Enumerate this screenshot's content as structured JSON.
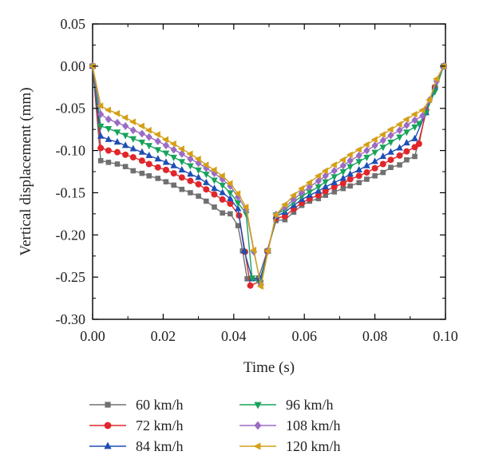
{
  "chart_data": {
    "type": "line",
    "title": "",
    "xlabel": "Time (s)",
    "ylabel": "Vertical displacement (mm)",
    "xlim": [
      0.0,
      0.1
    ],
    "ylim": [
      -0.3,
      0.05
    ],
    "x_ticks": [
      "0.00",
      "0.02",
      "0.04",
      "0.06",
      "0.08",
      "0.10"
    ],
    "y_ticks": [
      "0.05",
      "0.00",
      "-0.05",
      "-0.10",
      "-0.15",
      "-0.20",
      "-0.25",
      "-0.30"
    ],
    "grid": false,
    "legend_position": "bottom",
    "series": [
      {
        "name": "60 km/h",
        "color": "#707070",
        "marker": "square",
        "points": [
          [
            0.0,
            0.0
          ],
          [
            0.0023,
            -0.112
          ],
          [
            0.0045,
            -0.114
          ],
          [
            0.007,
            -0.116
          ],
          [
            0.0093,
            -0.119
          ],
          [
            0.0115,
            -0.124
          ],
          [
            0.014,
            -0.127
          ],
          [
            0.016,
            -0.13
          ],
          [
            0.0185,
            -0.133
          ],
          [
            0.0208,
            -0.137
          ],
          [
            0.023,
            -0.141
          ],
          [
            0.0253,
            -0.146
          ],
          [
            0.0277,
            -0.15
          ],
          [
            0.03,
            -0.154
          ],
          [
            0.0322,
            -0.16
          ],
          [
            0.0345,
            -0.167
          ],
          [
            0.0368,
            -0.174
          ],
          [
            0.039,
            -0.175
          ],
          [
            0.0412,
            -0.189
          ],
          [
            0.0425,
            -0.219
          ],
          [
            0.0438,
            -0.252
          ],
          [
            0.047,
            -0.251
          ],
          [
            0.0495,
            -0.219
          ],
          [
            0.052,
            -0.183
          ],
          [
            0.0545,
            -0.182
          ],
          [
            0.057,
            -0.173
          ],
          [
            0.0593,
            -0.165
          ],
          [
            0.0615,
            -0.16
          ],
          [
            0.064,
            -0.157
          ],
          [
            0.066,
            -0.153
          ],
          [
            0.0685,
            -0.149
          ],
          [
            0.071,
            -0.145
          ],
          [
            0.073,
            -0.142
          ],
          [
            0.0755,
            -0.138
          ],
          [
            0.0777,
            -0.134
          ],
          [
            0.08,
            -0.13
          ],
          [
            0.0823,
            -0.126
          ],
          [
            0.0845,
            -0.12
          ],
          [
            0.087,
            -0.117
          ],
          [
            0.089,
            -0.111
          ],
          [
            0.0913,
            -0.107
          ],
          [
            0.0945,
            -0.055
          ],
          [
            0.097,
            -0.025
          ],
          [
            0.0995,
            0.0
          ]
        ]
      },
      {
        "name": "72 km/h",
        "color": "#e0262b",
        "marker": "circle",
        "points": [
          [
            0.0,
            0.0
          ],
          [
            0.0023,
            -0.097
          ],
          [
            0.0045,
            -0.1
          ],
          [
            0.007,
            -0.102
          ],
          [
            0.0093,
            -0.105
          ],
          [
            0.0115,
            -0.108
          ],
          [
            0.014,
            -0.112
          ],
          [
            0.016,
            -0.116
          ],
          [
            0.0185,
            -0.12
          ],
          [
            0.0208,
            -0.123
          ],
          [
            0.023,
            -0.127
          ],
          [
            0.0253,
            -0.132
          ],
          [
            0.0277,
            -0.136
          ],
          [
            0.03,
            -0.14
          ],
          [
            0.0322,
            -0.146
          ],
          [
            0.0345,
            -0.152
          ],
          [
            0.0368,
            -0.158
          ],
          [
            0.039,
            -0.163
          ],
          [
            0.0415,
            -0.177
          ],
          [
            0.0432,
            -0.22
          ],
          [
            0.0447,
            -0.26
          ],
          [
            0.0475,
            -0.255
          ],
          [
            0.0495,
            -0.219
          ],
          [
            0.052,
            -0.18
          ],
          [
            0.0545,
            -0.178
          ],
          [
            0.057,
            -0.169
          ],
          [
            0.0593,
            -0.162
          ],
          [
            0.0615,
            -0.157
          ],
          [
            0.064,
            -0.153
          ],
          [
            0.066,
            -0.148
          ],
          [
            0.0685,
            -0.143
          ],
          [
            0.071,
            -0.139
          ],
          [
            0.073,
            -0.134
          ],
          [
            0.0755,
            -0.13
          ],
          [
            0.0777,
            -0.126
          ],
          [
            0.08,
            -0.121
          ],
          [
            0.0823,
            -0.116
          ],
          [
            0.0845,
            -0.111
          ],
          [
            0.087,
            -0.106
          ],
          [
            0.089,
            -0.101
          ],
          [
            0.0913,
            -0.096
          ],
          [
            0.0925,
            -0.092
          ],
          [
            0.0945,
            -0.052
          ],
          [
            0.097,
            -0.025
          ],
          [
            0.0995,
            0.0
          ]
        ]
      },
      {
        "name": "84 km/h",
        "color": "#1f4fb4",
        "marker": "triangle-up",
        "points": [
          [
            0.0,
            0.0
          ],
          [
            0.0023,
            -0.083
          ],
          [
            0.0045,
            -0.087
          ],
          [
            0.007,
            -0.09
          ],
          [
            0.0093,
            -0.094
          ],
          [
            0.0115,
            -0.098
          ],
          [
            0.014,
            -0.102
          ],
          [
            0.016,
            -0.106
          ],
          [
            0.0185,
            -0.11
          ],
          [
            0.0208,
            -0.114
          ],
          [
            0.023,
            -0.118
          ],
          [
            0.0253,
            -0.123
          ],
          [
            0.0277,
            -0.128
          ],
          [
            0.03,
            -0.132
          ],
          [
            0.0322,
            -0.138
          ],
          [
            0.0345,
            -0.145
          ],
          [
            0.0368,
            -0.15
          ],
          [
            0.039,
            -0.157
          ],
          [
            0.0412,
            -0.169
          ],
          [
            0.043,
            -0.219
          ],
          [
            0.0452,
            -0.252
          ],
          [
            0.0475,
            -0.252
          ],
          [
            0.0497,
            -0.219
          ],
          [
            0.052,
            -0.178
          ],
          [
            0.0545,
            -0.173
          ],
          [
            0.057,
            -0.165
          ],
          [
            0.0593,
            -0.158
          ],
          [
            0.0615,
            -0.153
          ],
          [
            0.064,
            -0.148
          ],
          [
            0.066,
            -0.143
          ],
          [
            0.0685,
            -0.138
          ],
          [
            0.071,
            -0.133
          ],
          [
            0.073,
            -0.128
          ],
          [
            0.0755,
            -0.123
          ],
          [
            0.0777,
            -0.118
          ],
          [
            0.08,
            -0.113
          ],
          [
            0.0823,
            -0.107
          ],
          [
            0.0845,
            -0.102
          ],
          [
            0.087,
            -0.097
          ],
          [
            0.089,
            -0.091
          ],
          [
            0.0913,
            -0.086
          ],
          [
            0.0945,
            -0.055
          ],
          [
            0.097,
            -0.025
          ],
          [
            0.0995,
            0.0
          ]
        ]
      },
      {
        "name": "96 km/h",
        "color": "#17a35a",
        "marker": "triangle-down",
        "points": [
          [
            0.0,
            0.0
          ],
          [
            0.0023,
            -0.071
          ],
          [
            0.0045,
            -0.074
          ],
          [
            0.007,
            -0.078
          ],
          [
            0.0093,
            -0.082
          ],
          [
            0.0115,
            -0.086
          ],
          [
            0.014,
            -0.09
          ],
          [
            0.016,
            -0.094
          ],
          [
            0.0185,
            -0.099
          ],
          [
            0.0208,
            -0.103
          ],
          [
            0.023,
            -0.108
          ],
          [
            0.0253,
            -0.113
          ],
          [
            0.0277,
            -0.118
          ],
          [
            0.03,
            -0.123
          ],
          [
            0.0322,
            -0.128
          ],
          [
            0.0345,
            -0.135
          ],
          [
            0.0368,
            -0.141
          ],
          [
            0.039,
            -0.15
          ],
          [
            0.0412,
            -0.162
          ],
          [
            0.0435,
            -0.175
          ],
          [
            0.0452,
            -0.251
          ],
          [
            0.0475,
            -0.258
          ],
          [
            0.0497,
            -0.219
          ],
          [
            0.052,
            -0.176
          ],
          [
            0.0545,
            -0.17
          ],
          [
            0.057,
            -0.161
          ],
          [
            0.0593,
            -0.154
          ],
          [
            0.0615,
            -0.149
          ],
          [
            0.064,
            -0.143
          ],
          [
            0.066,
            -0.137
          ],
          [
            0.0685,
            -0.131
          ],
          [
            0.071,
            -0.125
          ],
          [
            0.073,
            -0.119
          ],
          [
            0.0755,
            -0.113
          ],
          [
            0.0777,
            -0.108
          ],
          [
            0.08,
            -0.102
          ],
          [
            0.0823,
            -0.096
          ],
          [
            0.0845,
            -0.09
          ],
          [
            0.087,
            -0.084
          ],
          [
            0.089,
            -0.078
          ],
          [
            0.0913,
            -0.072
          ],
          [
            0.0925,
            -0.068
          ],
          [
            0.0945,
            -0.055
          ],
          [
            0.097,
            -0.03
          ],
          [
            0.0995,
            0.0
          ]
        ]
      },
      {
        "name": "108 km/h",
        "color": "#9b6cc4",
        "marker": "diamond",
        "points": [
          [
            0.0,
            0.0
          ],
          [
            0.0023,
            -0.057
          ],
          [
            0.0045,
            -0.063
          ],
          [
            0.007,
            -0.067
          ],
          [
            0.0093,
            -0.071
          ],
          [
            0.0115,
            -0.076
          ],
          [
            0.014,
            -0.08
          ],
          [
            0.016,
            -0.084
          ],
          [
            0.0185,
            -0.089
          ],
          [
            0.0208,
            -0.094
          ],
          [
            0.023,
            -0.099
          ],
          [
            0.0253,
            -0.104
          ],
          [
            0.0277,
            -0.11
          ],
          [
            0.03,
            -0.115
          ],
          [
            0.0322,
            -0.121
          ],
          [
            0.0345,
            -0.127
          ],
          [
            0.0368,
            -0.134
          ],
          [
            0.039,
            -0.142
          ],
          [
            0.0412,
            -0.155
          ],
          [
            0.0435,
            -0.17
          ],
          [
            0.0457,
            -0.22
          ],
          [
            0.0477,
            -0.259
          ],
          [
            0.0497,
            -0.219
          ],
          [
            0.052,
            -0.176
          ],
          [
            0.0545,
            -0.167
          ],
          [
            0.057,
            -0.158
          ],
          [
            0.0593,
            -0.15
          ],
          [
            0.0615,
            -0.143
          ],
          [
            0.064,
            -0.136
          ],
          [
            0.066,
            -0.13
          ],
          [
            0.0685,
            -0.124
          ],
          [
            0.071,
            -0.118
          ],
          [
            0.073,
            -0.112
          ],
          [
            0.0755,
            -0.106
          ],
          [
            0.0777,
            -0.1
          ],
          [
            0.08,
            -0.094
          ],
          [
            0.0823,
            -0.088
          ],
          [
            0.0845,
            -0.082
          ],
          [
            0.087,
            -0.076
          ],
          [
            0.089,
            -0.07
          ],
          [
            0.0913,
            -0.064
          ],
          [
            0.0935,
            -0.059
          ],
          [
            0.0955,
            -0.04
          ],
          [
            0.0975,
            -0.018
          ],
          [
            0.0995,
            0.0
          ]
        ]
      },
      {
        "name": "120 km/h",
        "color": "#d4a017",
        "marker": "triangle-left",
        "points": [
          [
            0.0,
            0.0
          ],
          [
            0.0023,
            -0.047
          ],
          [
            0.0045,
            -0.052
          ],
          [
            0.007,
            -0.056
          ],
          [
            0.0093,
            -0.061
          ],
          [
            0.0115,
            -0.066
          ],
          [
            0.014,
            -0.071
          ],
          [
            0.016,
            -0.076
          ],
          [
            0.0185,
            -0.081
          ],
          [
            0.0208,
            -0.087
          ],
          [
            0.023,
            -0.092
          ],
          [
            0.0253,
            -0.098
          ],
          [
            0.0277,
            -0.104
          ],
          [
            0.03,
            -0.11
          ],
          [
            0.0322,
            -0.117
          ],
          [
            0.0345,
            -0.123
          ],
          [
            0.0368,
            -0.13
          ],
          [
            0.039,
            -0.139
          ],
          [
            0.0412,
            -0.151
          ],
          [
            0.0435,
            -0.167
          ],
          [
            0.0457,
            -0.218
          ],
          [
            0.0477,
            -0.261
          ],
          [
            0.0497,
            -0.219
          ],
          [
            0.052,
            -0.176
          ],
          [
            0.0545,
            -0.164
          ],
          [
            0.057,
            -0.153
          ],
          [
            0.0593,
            -0.145
          ],
          [
            0.0615,
            -0.138
          ],
          [
            0.064,
            -0.13
          ],
          [
            0.066,
            -0.124
          ],
          [
            0.0685,
            -0.117
          ],
          [
            0.071,
            -0.111
          ],
          [
            0.073,
            -0.105
          ],
          [
            0.0755,
            -0.099
          ],
          [
            0.0777,
            -0.093
          ],
          [
            0.08,
            -0.087
          ],
          [
            0.0823,
            -0.081
          ],
          [
            0.0845,
            -0.075
          ],
          [
            0.087,
            -0.069
          ],
          [
            0.089,
            -0.063
          ],
          [
            0.0913,
            -0.057
          ],
          [
            0.0935,
            -0.052
          ],
          [
            0.0955,
            -0.04
          ],
          [
            0.0975,
            -0.015
          ],
          [
            0.0995,
            0.0
          ]
        ]
      }
    ]
  }
}
